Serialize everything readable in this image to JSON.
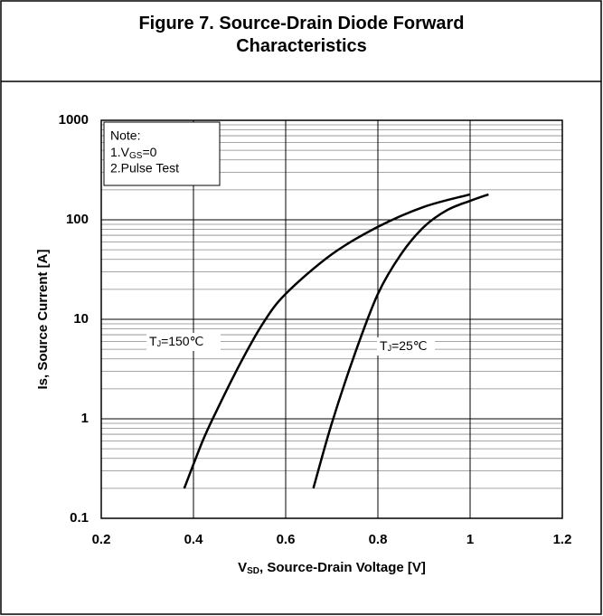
{
  "chart_data": {
    "type": "line",
    "title": "Figure 7. Source-Drain Diode Forward Characteristics",
    "xlabel_parts": [
      "V",
      "SD",
      ", Source-Drain Voltage [V]"
    ],
    "ylabel": "Is, Source Current [A]",
    "note": {
      "title": "Note:",
      "line1": [
        "1.V",
        "GS",
        "=0"
      ],
      "line2": "2.Pulse Test"
    },
    "xlim": [
      0.2,
      1.2
    ],
    "xticks": [
      0.2,
      0.4,
      0.6,
      0.8,
      1,
      1.2
    ],
    "ylim": [
      0.1,
      1000
    ],
    "yticks": [
      0.1,
      1,
      10,
      100,
      1000
    ],
    "ylog": true,
    "grid": true,
    "minor_grid": true,
    "series": [
      {
        "name_parts": [
          "T",
          "J",
          "=150℃"
        ],
        "color": "#000000",
        "x": [
          0.38,
          0.42,
          0.45,
          0.5,
          0.55,
          0.6,
          0.7,
          0.8,
          0.9,
          1.0
        ],
        "values": [
          0.2,
          0.6,
          1.2,
          3.5,
          9,
          18,
          45,
          85,
          135,
          180
        ]
      },
      {
        "name_parts": [
          "T",
          "J",
          "=25℃"
        ],
        "color": "#000000",
        "x": [
          0.66,
          0.7,
          0.75,
          0.8,
          0.85,
          0.9,
          0.95,
          1.0,
          1.04
        ],
        "values": [
          0.2,
          0.9,
          4.5,
          18,
          45,
          85,
          125,
          155,
          180
        ]
      }
    ]
  }
}
